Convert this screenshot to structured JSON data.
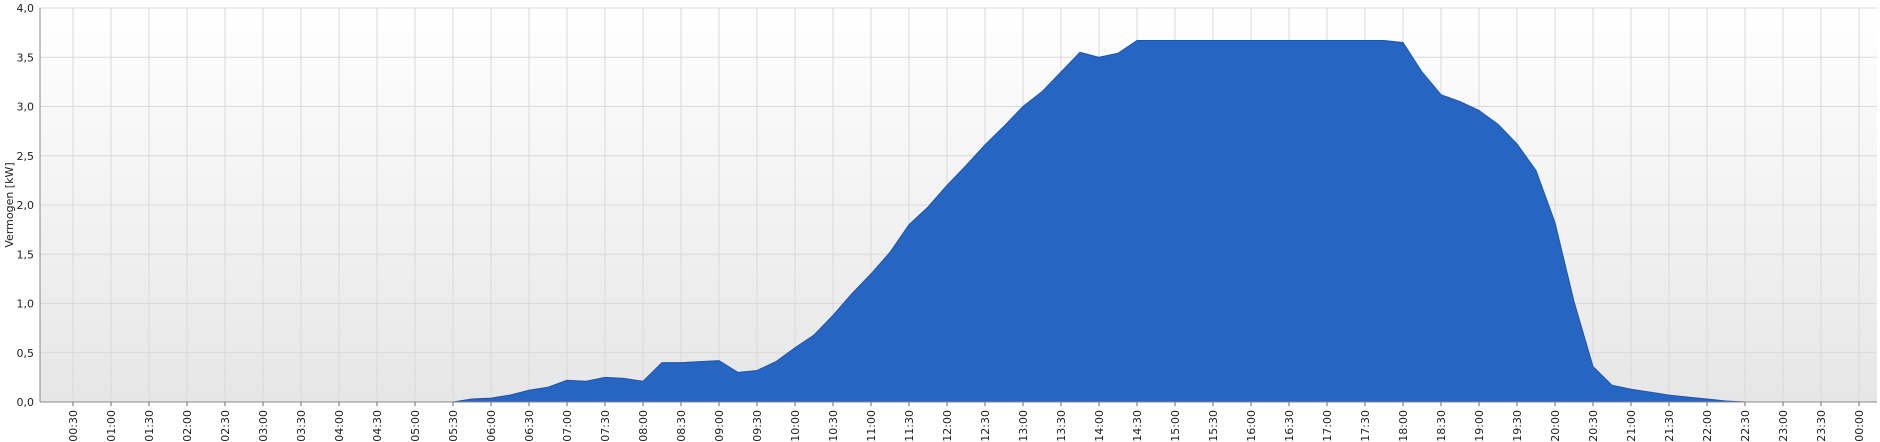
{
  "chart_data": {
    "type": "area",
    "title": "",
    "ylabel": "Vermogen [kW]",
    "xlabel": "",
    "ylim": [
      0,
      4.0
    ],
    "y_ticks": [
      "0,0",
      "0,5",
      "1,0",
      "1,5",
      "2,0",
      "2,5",
      "3,0",
      "3,5",
      "4,0"
    ],
    "x_ticks": [
      "00:30",
      "01:00",
      "01:30",
      "02:00",
      "02:30",
      "03:00",
      "03:30",
      "04:00",
      "04:30",
      "05:00",
      "05:30",
      "06:00",
      "06:30",
      "07:00",
      "07:30",
      "08:00",
      "08:30",
      "09:00",
      "09:30",
      "10:00",
      "10:30",
      "11:00",
      "11:30",
      "12:00",
      "12:30",
      "13:00",
      "13:30",
      "14:00",
      "14:30",
      "15:00",
      "15:30",
      "16:00",
      "16:30",
      "17:00",
      "17:30",
      "18:00",
      "18:30",
      "19:00",
      "19:30",
      "20:00",
      "20:30",
      "21:00",
      "21:30",
      "22:00",
      "22:30",
      "23:00",
      "23:30",
      "00:00"
    ],
    "grid": true,
    "colors": {
      "area": "#2665C2",
      "grid": "#d9d9d9",
      "bg_top": "#ffffff",
      "bg_bottom": "#e6e6e6"
    },
    "series": [
      {
        "x": [
          "05:30",
          "05:45",
          "06:00",
          "06:15",
          "06:30",
          "06:45",
          "07:00",
          "07:15",
          "07:30",
          "07:45",
          "08:00",
          "08:15",
          "08:30",
          "08:45",
          "09:00",
          "09:15",
          "09:30",
          "09:45",
          "10:00",
          "10:15",
          "10:30",
          "10:45",
          "11:00",
          "11:15",
          "11:30",
          "11:45",
          "12:00",
          "12:15",
          "12:30",
          "12:45",
          "13:00",
          "13:15",
          "13:30",
          "13:45",
          "14:00",
          "14:15",
          "14:30",
          "14:45",
          "15:00",
          "15:30",
          "16:00",
          "16:30",
          "17:00",
          "17:30",
          "17:45",
          "18:00",
          "18:15",
          "18:30",
          "18:45",
          "19:00",
          "19:15",
          "19:30",
          "19:45",
          "20:00",
          "20:15",
          "20:30",
          "20:45",
          "21:00",
          "21:15",
          "21:30",
          "21:45",
          "22:00",
          "22:15",
          "22:30"
        ],
        "y": [
          0.0,
          0.03,
          0.04,
          0.07,
          0.12,
          0.15,
          0.22,
          0.21,
          0.25,
          0.24,
          0.21,
          0.4,
          0.4,
          0.41,
          0.42,
          0.3,
          0.32,
          0.41,
          0.55,
          0.68,
          0.88,
          1.1,
          1.3,
          1.52,
          1.8,
          1.98,
          2.2,
          2.4,
          2.61,
          2.8,
          3.0,
          3.15,
          3.35,
          3.55,
          3.5,
          3.54,
          3.67,
          3.67,
          3.67,
          3.67,
          3.67,
          3.67,
          3.67,
          3.67,
          3.67,
          3.65,
          3.35,
          3.12,
          3.05,
          2.96,
          2.82,
          2.62,
          2.35,
          1.82,
          1.02,
          0.36,
          0.17,
          0.13,
          0.1,
          0.07,
          0.05,
          0.03,
          0.01,
          0.0
        ]
      }
    ]
  }
}
